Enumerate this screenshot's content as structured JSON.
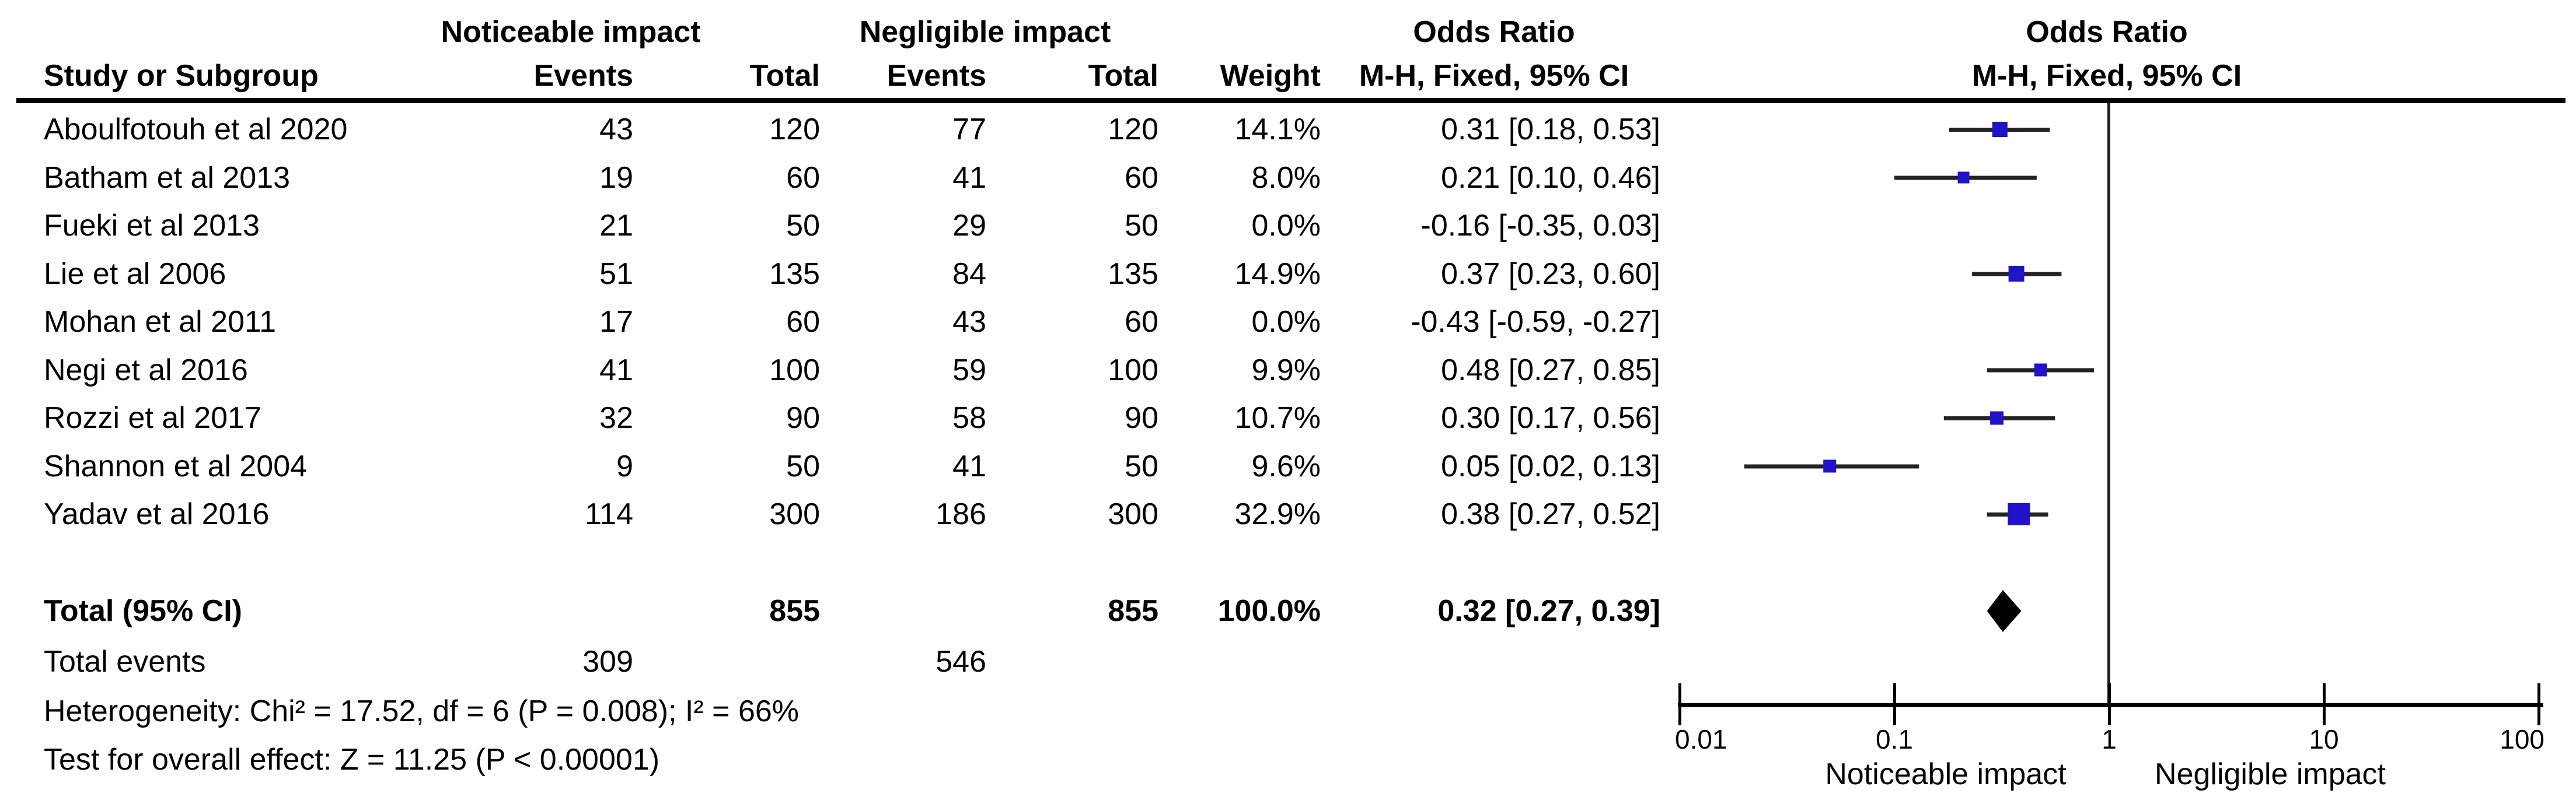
{
  "headers": {
    "group1": "Noticeable impact",
    "group2": "Negligible impact",
    "study": "Study or Subgroup",
    "events": "Events",
    "total": "Total",
    "weight": "Weight",
    "or_ratio": "Odds Ratio",
    "mh": "M-H, Fixed, 95% CI",
    "plot_or": "Odds Ratio",
    "plot_mh": "M-H, Fixed, 95% CI"
  },
  "chart_data": {
    "type": "forest_plot",
    "effect_measure": "Odds Ratio, M-H, Fixed, 95% CI",
    "x_scale": "log10",
    "axis_ticks": [
      "0.01",
      "0.1",
      "1",
      "10",
      "100"
    ],
    "axis_tick_values": [
      0.01,
      0.1,
      1,
      10,
      100
    ],
    "axis_left_label": "Noticeable impact",
    "axis_right_label": "Negligible impact",
    "studies": [
      {
        "name": "Aboulfotouh et al 2020",
        "events1": "43",
        "total1": "120",
        "events2": "77",
        "total2": "120",
        "weight": "14.1%",
        "or_ci": "0.31 [0.18, 0.53]",
        "or": 0.31,
        "lo": 0.18,
        "hi": 0.53,
        "weight_num": 14.1,
        "plotted": true
      },
      {
        "name": "Batham et al 2013",
        "events1": "19",
        "total1": "60",
        "events2": "41",
        "total2": "60",
        "weight": "8.0%",
        "or_ci": "0.21 [0.10, 0.46]",
        "or": 0.21,
        "lo": 0.1,
        "hi": 0.46,
        "weight_num": 8.0,
        "plotted": true
      },
      {
        "name": "Fueki et al 2013",
        "events1": "21",
        "total1": "50",
        "events2": "29",
        "total2": "50",
        "weight": "0.0%",
        "or_ci": "-0.16 [-0.35, 0.03]",
        "or": -0.16,
        "lo": -0.35,
        "hi": 0.03,
        "weight_num": 0.0,
        "plotted": false
      },
      {
        "name": "Lie et al 2006",
        "events1": "51",
        "total1": "135",
        "events2": "84",
        "total2": "135",
        "weight": "14.9%",
        "or_ci": "0.37 [0.23, 0.60]",
        "or": 0.37,
        "lo": 0.23,
        "hi": 0.6,
        "weight_num": 14.9,
        "plotted": true
      },
      {
        "name": "Mohan et al 2011",
        "events1": "17",
        "total1": "60",
        "events2": "43",
        "total2": "60",
        "weight": "0.0%",
        "or_ci": "-0.43 [-0.59, -0.27]",
        "or": -0.43,
        "lo": -0.59,
        "hi": -0.27,
        "weight_num": 0.0,
        "plotted": false
      },
      {
        "name": "Negi et al 2016",
        "events1": "41",
        "total1": "100",
        "events2": "59",
        "total2": "100",
        "weight": "9.9%",
        "or_ci": "0.48 [0.27, 0.85]",
        "or": 0.48,
        "lo": 0.27,
        "hi": 0.85,
        "weight_num": 9.9,
        "plotted": true
      },
      {
        "name": "Rozzi et al 2017",
        "events1": "32",
        "total1": "90",
        "events2": "58",
        "total2": "90",
        "weight": "10.7%",
        "or_ci": "0.30 [0.17, 0.56]",
        "or": 0.3,
        "lo": 0.17,
        "hi": 0.56,
        "weight_num": 10.7,
        "plotted": true
      },
      {
        "name": "Shannon et al 2004",
        "events1": "9",
        "total1": "50",
        "events2": "41",
        "total2": "50",
        "weight": "9.6%",
        "or_ci": "0.05 [0.02, 0.13]",
        "or": 0.05,
        "lo": 0.02,
        "hi": 0.13,
        "weight_num": 9.6,
        "plotted": true
      },
      {
        "name": "Yadav et al 2016",
        "events1": "114",
        "total1": "300",
        "events2": "186",
        "total2": "300",
        "weight": "32.9%",
        "or_ci": "0.38 [0.27, 0.52]",
        "or": 0.38,
        "lo": 0.27,
        "hi": 0.52,
        "weight_num": 32.9,
        "plotted": true
      }
    ],
    "total": {
      "label": "Total (95% CI)",
      "total1": "855",
      "total2": "855",
      "weight": "100.0%",
      "or_ci": "0.32 [0.27, 0.39]",
      "or": 0.32,
      "lo": 0.27,
      "hi": 0.39
    },
    "total_events": {
      "label": "Total events",
      "events1": "309",
      "events2": "546"
    },
    "heterogeneity": "Heterogeneity: Chi² = 17.52, df = 6 (P = 0.008); I² = 66%",
    "overall_effect": "Test for overall effect: Z = 11.25 (P < 0.00001)",
    "colors": {
      "marker_blue": "#2013c9",
      "ci_line": "#222222",
      "diamond": "#000000",
      "axis": "#000000"
    }
  }
}
